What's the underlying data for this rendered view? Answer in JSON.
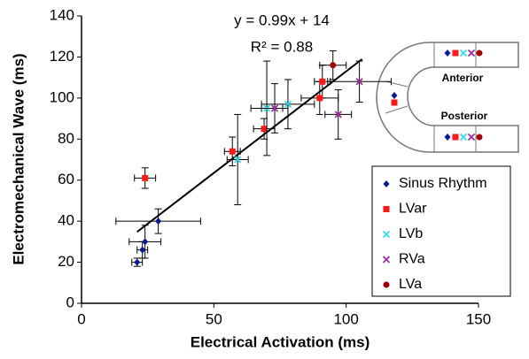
{
  "chart_data": {
    "type": "scatter",
    "x_label": "Electrical Activation (ms)",
    "y_label": "Electromechanical Wave (ms)",
    "xlim": [
      0,
      150
    ],
    "xticks": [
      0,
      50,
      100,
      150
    ],
    "ylim": [
      0,
      140
    ],
    "yticks": [
      0,
      20,
      40,
      60,
      80,
      100,
      120,
      140
    ],
    "annotations": [
      "y = 0.99x + 14",
      "R² = 0.88"
    ],
    "trendline": {
      "slope": 0.99,
      "intercept": 14,
      "x": [
        21,
        106
      ]
    },
    "inset_labels": [
      "Anterior",
      "Posterior"
    ],
    "series": [
      {
        "name": "Sinus Rhythm",
        "color": "#0a1a8c",
        "marker": "diamond",
        "x": [
          21,
          23,
          24,
          29
        ],
        "values": [
          20,
          26,
          30,
          40
        ],
        "xerr": [
          2,
          2,
          6,
          16
        ],
        "yerr": [
          2,
          4,
          8,
          6
        ]
      },
      {
        "name": "LVar",
        "color": "#ff1a1a",
        "marker": "square",
        "x": [
          24,
          57,
          69,
          90,
          91
        ],
        "values": [
          61,
          74,
          85,
          100,
          108
        ],
        "xerr": [
          4,
          3,
          4,
          7,
          3
        ],
        "yerr": [
          5,
          7,
          5,
          8,
          8
        ]
      },
      {
        "name": "LVb",
        "color": "#33dde6",
        "marker": "x",
        "x": [
          59,
          70,
          78
        ],
        "values": [
          70,
          95,
          97
        ],
        "xerr": [
          4,
          6,
          10
        ],
        "yerr": [
          22,
          23,
          12
        ]
      },
      {
        "name": "RVa",
        "color": "#9b2fa0",
        "marker": "x",
        "x": [
          73,
          97,
          105
        ],
        "values": [
          95,
          92,
          108
        ],
        "xerr": [
          5,
          5,
          12
        ],
        "yerr": [
          12,
          12,
          10
        ]
      },
      {
        "name": "LVa",
        "color": "#a00000",
        "marker": "circle",
        "x": [
          95
        ],
        "values": [
          116
        ],
        "xerr": [
          5
        ],
        "yerr": [
          7
        ]
      }
    ]
  }
}
